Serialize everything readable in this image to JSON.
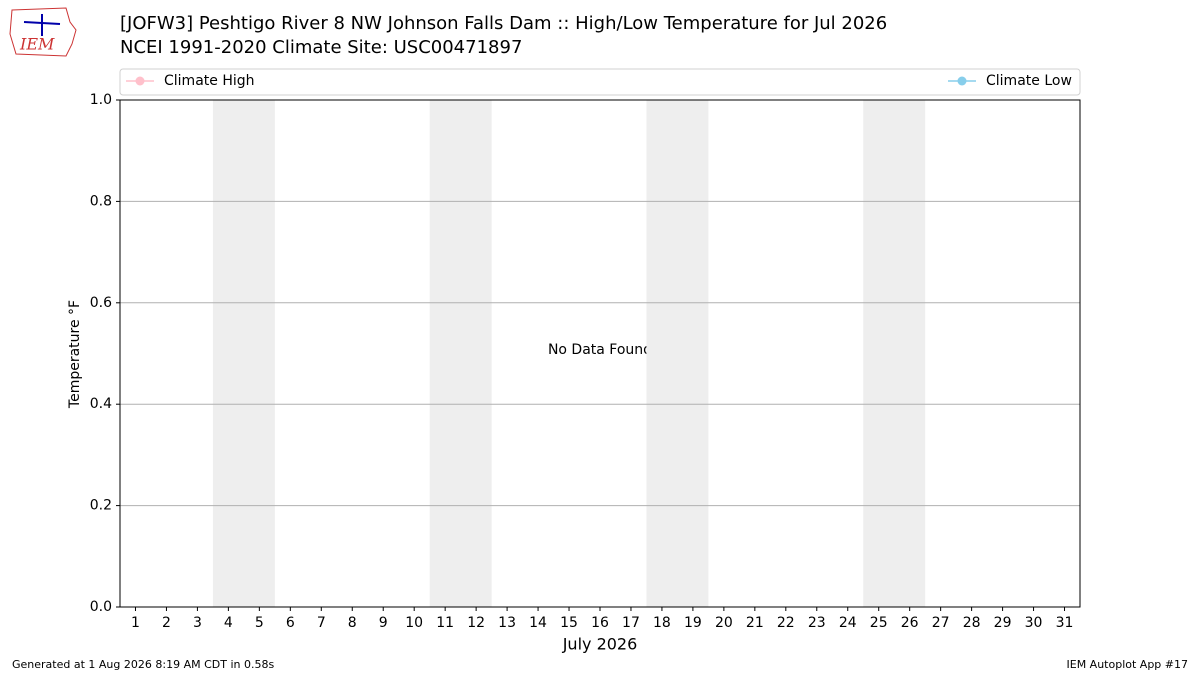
{
  "chart_data": {
    "type": "line",
    "title": "[JOFW3] Peshtigo River 8 NW Johnson Falls Dam :: High/Low Temperature for Jul 2026",
    "subtitle": "NCEI 1991-2020 Climate Site: USC00471897",
    "xlabel": "July 2026",
    "ylabel": "Temperature °F",
    "annotation": "No Data Found",
    "logo_text": "IEM",
    "footer_left": "Generated at 1 Aug 2026 8:19 AM CDT in 0.58s",
    "footer_right": "IEM Autoplot App #17",
    "x": [
      1,
      2,
      3,
      4,
      5,
      6,
      7,
      8,
      9,
      10,
      11,
      12,
      13,
      14,
      15,
      16,
      17,
      18,
      19,
      20,
      21,
      22,
      23,
      24,
      25,
      26,
      27,
      28,
      29,
      30,
      31
    ],
    "series": [
      {
        "name": "Climate High",
        "color": "#ffc0cb",
        "values": [
          null,
          null,
          null,
          null,
          null,
          null,
          null,
          null,
          null,
          null,
          null,
          null,
          null,
          null,
          null,
          null,
          null,
          null,
          null,
          null,
          null,
          null,
          null,
          null,
          null,
          null,
          null,
          null,
          null,
          null,
          null
        ]
      },
      {
        "name": "Climate Low",
        "color": "#87ceeb",
        "values": [
          null,
          null,
          null,
          null,
          null,
          null,
          null,
          null,
          null,
          null,
          null,
          null,
          null,
          null,
          null,
          null,
          null,
          null,
          null,
          null,
          null,
          null,
          null,
          null,
          null,
          null,
          null,
          null,
          null,
          null,
          null
        ]
      }
    ],
    "shaded_spans": [
      [
        3.5,
        5.5
      ],
      [
        10.5,
        12.5
      ],
      [
        17.5,
        19.5
      ],
      [
        24.5,
        26.5
      ]
    ],
    "xlim": [
      0.5,
      31.5
    ],
    "xticks": [
      1,
      2,
      3,
      4,
      5,
      6,
      7,
      8,
      9,
      10,
      11,
      12,
      13,
      14,
      15,
      16,
      17,
      18,
      19,
      20,
      21,
      22,
      23,
      24,
      25,
      26,
      27,
      28,
      29,
      30,
      31
    ],
    "ylim": [
      0,
      1
    ],
    "yticks": [
      {
        "value": 0,
        "label": "0.0"
      },
      {
        "value": 0.2,
        "label": "0.2"
      },
      {
        "value": 0.4,
        "label": "0.4"
      },
      {
        "value": 0.6,
        "label": "0.6"
      },
      {
        "value": 0.8,
        "label": "0.8"
      },
      {
        "value": 1,
        "label": "1.0"
      }
    ],
    "grid": true,
    "legend": "top"
  }
}
